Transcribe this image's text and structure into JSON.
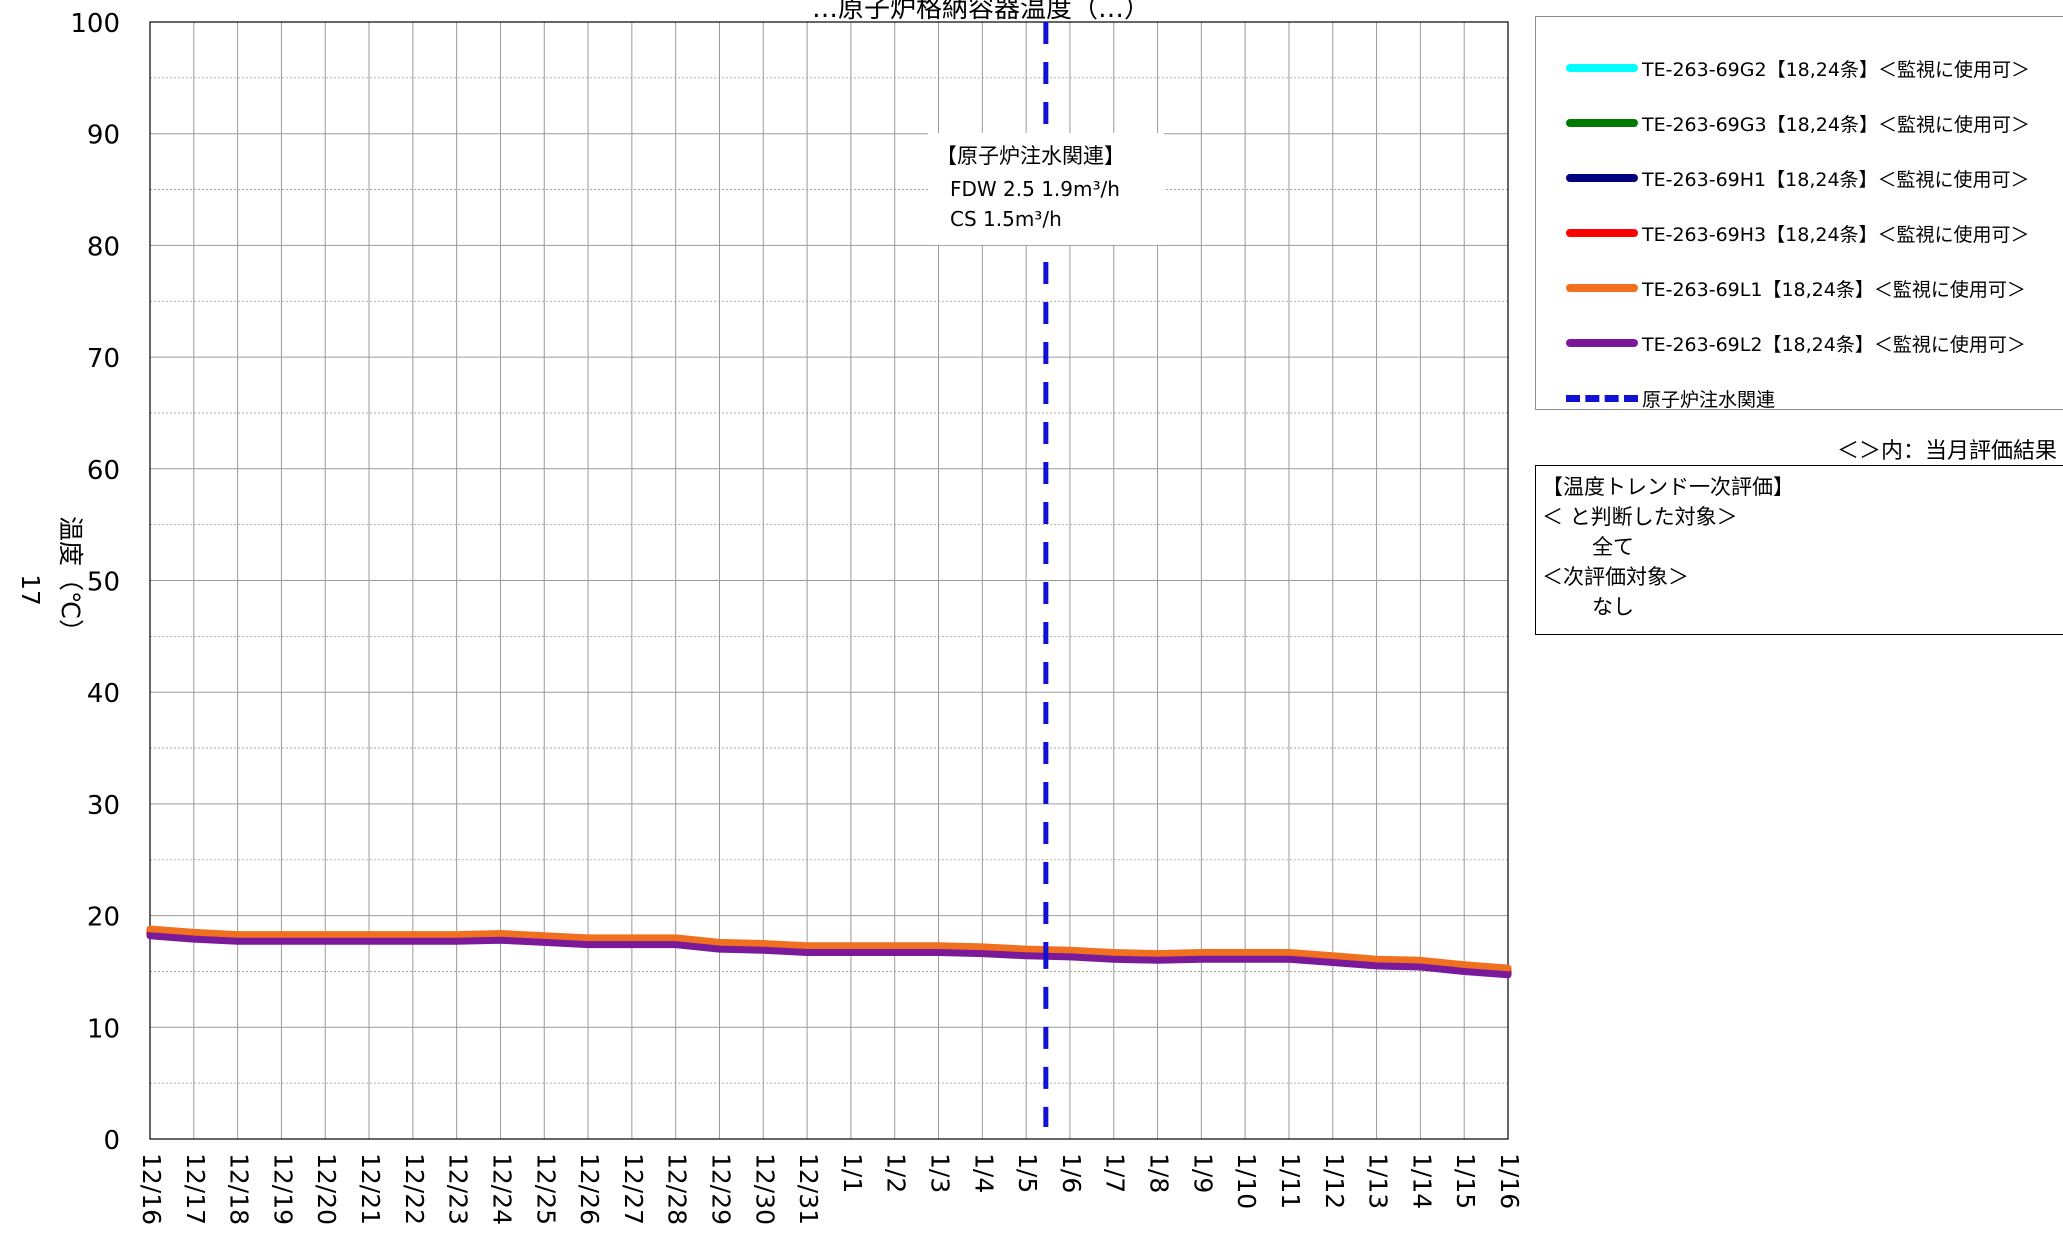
{
  "chart_data": {
    "type": "line",
    "title": "…原子炉格納容器温度（…）",
    "ylabel": "温度（℃）",
    "ylim": [
      0,
      100
    ],
    "yticks": [
      0,
      10,
      20,
      30,
      40,
      50,
      60,
      70,
      80,
      90,
      100
    ],
    "x_labels": [
      "12/16",
      "12/17",
      "12/18",
      "12/19",
      "12/20",
      "12/21",
      "12/22",
      "12/23",
      "12/24",
      "12/25",
      "12/26",
      "12/27",
      "12/28",
      "12/29",
      "12/30",
      "12/31",
      "1/1",
      "1/2",
      "1/3",
      "1/4",
      "1/5",
      "1/6",
      "1/7",
      "1/8",
      "1/9",
      "1/10",
      "1/11",
      "1/12",
      "1/13",
      "1/14",
      "1/15",
      "1/16"
    ],
    "grid": true,
    "series": [
      {
        "name": "TE-263-69G2【18,24条】＜監視に使用可＞",
        "color": "#00ffff",
        "values": [
          18.4,
          18.1,
          17.9,
          17.9,
          17.9,
          17.9,
          17.9,
          17.9,
          18.0,
          17.8,
          17.6,
          17.6,
          17.6,
          17.2,
          17.1,
          16.9,
          16.9,
          16.9,
          16.9,
          16.8,
          16.6,
          16.5,
          16.3,
          16.2,
          16.3,
          16.3,
          16.3,
          16.0,
          15.7,
          15.6,
          15.2,
          14.9
        ]
      },
      {
        "name": "TE-263-69G3【18,24条】＜監視に使用可＞",
        "color": "#007a00",
        "values": [
          18.4,
          18.1,
          17.9,
          17.9,
          17.9,
          17.9,
          17.9,
          17.9,
          18.0,
          17.8,
          17.6,
          17.6,
          17.6,
          17.2,
          17.1,
          16.9,
          16.9,
          16.9,
          16.9,
          16.8,
          16.6,
          16.5,
          16.3,
          16.2,
          16.3,
          16.3,
          16.3,
          16.0,
          15.7,
          15.6,
          15.2,
          14.9
        ]
      },
      {
        "name": "TE-263-69H1【18,24条】＜監視に使用可＞",
        "color": "#000080",
        "values": [
          18.3,
          18.0,
          17.8,
          17.8,
          17.8,
          17.8,
          17.8,
          17.8,
          17.9,
          17.7,
          17.5,
          17.5,
          17.5,
          17.1,
          17.0,
          16.8,
          16.8,
          16.8,
          16.8,
          16.7,
          16.5,
          16.4,
          16.2,
          16.1,
          16.2,
          16.2,
          16.2,
          15.9,
          15.6,
          15.5,
          15.1,
          14.8
        ]
      },
      {
        "name": "TE-263-69H3【18,24条】＜監視に使用可＞",
        "color": "#ff0000",
        "values": [
          18.6,
          18.3,
          18.1,
          18.1,
          18.1,
          18.1,
          18.1,
          18.1,
          18.2,
          18.0,
          17.8,
          17.8,
          17.8,
          17.4,
          17.3,
          17.1,
          17.1,
          17.1,
          17.1,
          17.0,
          16.8,
          16.7,
          16.5,
          16.4,
          16.5,
          16.5,
          16.5,
          16.2,
          15.9,
          15.8,
          15.4,
          15.1
        ]
      },
      {
        "name": "TE-263-69L1【18,24条】＜監視に使用可＞",
        "color": "#f07020",
        "values": [
          18.8,
          18.5,
          18.3,
          18.3,
          18.3,
          18.3,
          18.3,
          18.3,
          18.4,
          18.2,
          18.0,
          18.0,
          18.0,
          17.6,
          17.5,
          17.3,
          17.3,
          17.3,
          17.3,
          17.2,
          17.0,
          16.9,
          16.7,
          16.6,
          16.7,
          16.7,
          16.7,
          16.4,
          16.1,
          16.0,
          15.6,
          15.3
        ]
      },
      {
        "name": "TE-263-69L2【18,24条】＜監視に使用可＞",
        "color": "#7a1a9a",
        "values": [
          18.2,
          17.9,
          17.7,
          17.7,
          17.7,
          17.7,
          17.7,
          17.7,
          17.8,
          17.6,
          17.4,
          17.4,
          17.4,
          17.0,
          16.9,
          16.7,
          16.7,
          16.7,
          16.7,
          16.6,
          16.4,
          16.3,
          16.1,
          16.0,
          16.1,
          16.1,
          16.1,
          15.8,
          15.5,
          15.4,
          15.0,
          14.7
        ]
      }
    ],
    "event_line": {
      "name": "原子炉注水関連",
      "x_index": 20.45,
      "color": "#1111d6"
    },
    "annotation": {
      "title": "【原子炉注水関連】",
      "line1": "FDW  2.5    1.9m³/h",
      "line2": "CS     1.5m³/h"
    }
  },
  "legend": {
    "items": [
      {
        "label": "TE-263-69G2【18,24条】＜監視に使用可＞",
        "color": "#00ffff"
      },
      {
        "label": "TE-263-69G3【18,24条】＜監視に使用可＞",
        "color": "#007a00"
      },
      {
        "label": "TE-263-69H1【18,24条】＜監視に使用可＞",
        "color": "#000080"
      },
      {
        "label": "TE-263-69H3【18,24条】＜監視に使用可＞",
        "color": "#ff0000"
      },
      {
        "label": "TE-263-69L1【18,24条】＜監視に使用可＞",
        "color": "#f07020"
      },
      {
        "label": "TE-263-69L2【18,24条】＜監視に使用可＞",
        "color": "#7a1a9a"
      },
      {
        "label": "原子炉注水関連",
        "color": "#1111d6",
        "dashed": true
      }
    ]
  },
  "note": "＜＞内：当月評価結果",
  "evaluation": {
    "title": "【温度トレンド一次評価】",
    "line1": "＜  と判断した対象＞",
    "line2": "全て",
    "line3": "＜次評価対象＞",
    "line4": "なし"
  },
  "page_number": "17"
}
